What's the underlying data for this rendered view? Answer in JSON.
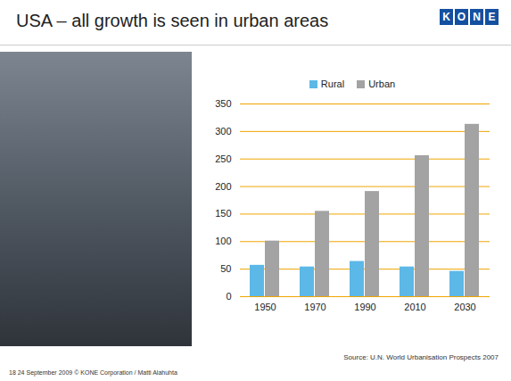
{
  "chart_data": {
    "type": "bar",
    "title": "USA – all growth is seen in urban areas",
    "logo": "KONE",
    "source": "Source: U.N. World Urbanisation Prospects 2007",
    "footer": "18   24 September 2009   © KONE Corporation / Matti Alahuhta",
    "categories": [
      1950,
      1970,
      1990,
      2010,
      2030
    ],
    "series": [
      {
        "name": "Rural",
        "color": "#5cb8e6",
        "values": [
          57,
          54,
          64,
          54,
          46
        ]
      },
      {
        "name": "Urban",
        "color": "#a3a3a3",
        "values": [
          101,
          155,
          191,
          256,
          313
        ]
      }
    ],
    "ylim": [
      0,
      350
    ],
    "yticks": [
      0,
      50,
      100,
      150,
      200,
      250,
      300,
      350
    ],
    "grid": true,
    "legend": "top"
  }
}
